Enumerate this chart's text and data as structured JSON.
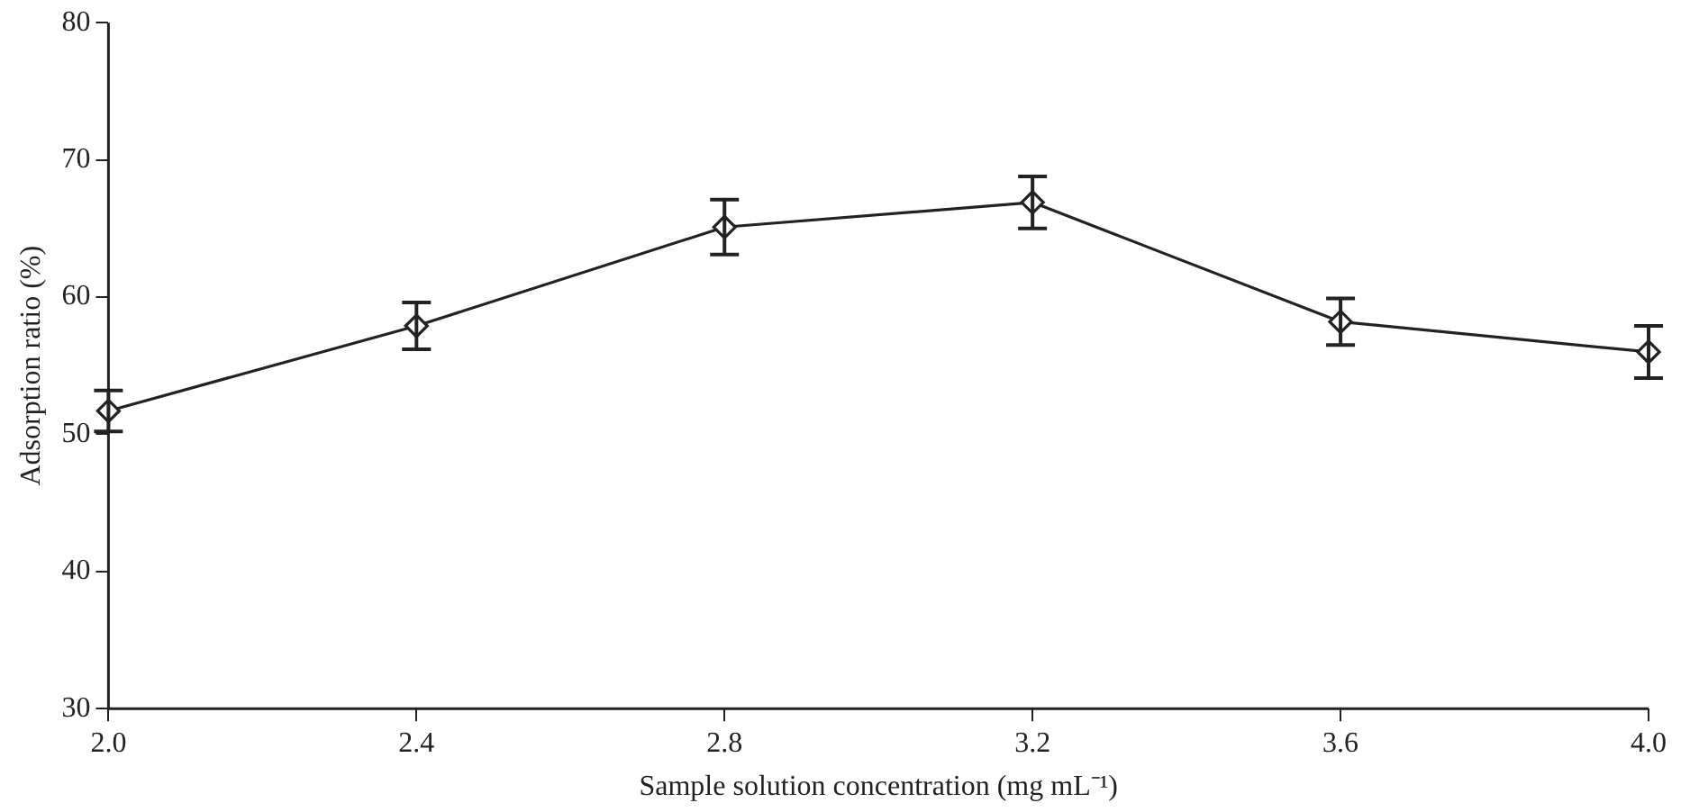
{
  "chart_data": {
    "type": "line",
    "xlabel": "Sample solution concentration (mg mL⁻¹)",
    "ylabel": "Adsorption ratio (%)",
    "x": [
      2.0,
      2.4,
      2.8,
      3.2,
      3.6,
      4.0
    ],
    "values": [
      51.7,
      57.9,
      65.1,
      66.9,
      58.2,
      56.0
    ],
    "errors": [
      1.5,
      1.7,
      2.0,
      1.9,
      1.7,
      1.9
    ],
    "color": "#222222",
    "marker": "diamond",
    "line_style": "solid",
    "grid": false,
    "legend": false,
    "xlim": [
      2.0,
      4.0
    ],
    "xticks": [
      {
        "value": 2.0,
        "label": "2.0"
      },
      {
        "value": 2.4,
        "label": "2.4"
      },
      {
        "value": 2.8,
        "label": "2.8"
      },
      {
        "value": 3.2,
        "label": "3.2"
      },
      {
        "value": 3.6,
        "label": "3.6"
      },
      {
        "value": 4.0,
        "label": "4.0"
      }
    ],
    "ylim": [
      30,
      80
    ],
    "yticks": [
      30,
      40,
      50,
      60,
      70,
      80
    ]
  }
}
